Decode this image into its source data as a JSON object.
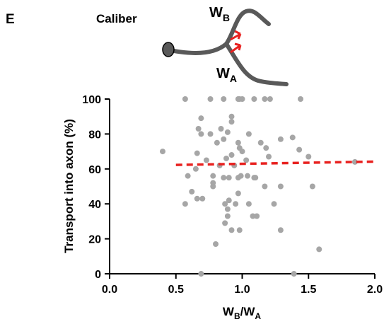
{
  "panel_label": "E",
  "diagram": {
    "title": "Caliber",
    "upper": {
      "main": "W",
      "sub": "B"
    },
    "lower": {
      "main": "W",
      "sub": "A"
    }
  },
  "chart_data": {
    "type": "scatter",
    "y_label": "Transport into axon (%)",
    "x_label_parts": {
      "a_main": "W",
      "a_sub": "B",
      "b_main": "/W",
      "b_sub": "A"
    },
    "color": "#a6a6a6",
    "x": [
      0.57,
      0.76,
      0.86,
      0.97,
      0.98,
      1.0,
      1.09,
      1.17,
      1.21,
      1.44,
      0.92,
      0.92,
      0.69,
      0.67,
      0.69,
      0.76,
      0.89,
      0.84,
      1.05,
      0.86,
      0.81,
      0.97,
      0.98,
      1.14,
      1.29,
      1.38,
      1.5,
      0.4,
      0.66,
      0.73,
      0.92,
      0.88,
      1.0,
      1.18,
      1.2,
      1.43,
      0.94,
      1.03,
      0.65,
      0.83,
      0.78,
      0.59,
      0.78,
      0.78,
      0.86,
      0.9,
      0.97,
      0.99,
      1.04,
      1.1,
      1.17,
      1.29,
      1.53,
      1.85,
      0.62,
      0.66,
      0.7,
      0.57,
      0.87,
      0.89,
      0.9,
      0.95,
      0.97,
      1.05,
      1.08,
      1.11,
      1.09,
      1.24,
      0.89,
      0.87,
      0.92,
      0.98,
      1.29,
      0.8,
      1.58,
      0.69,
      1.39
    ],
    "y": [
      100,
      100,
      100,
      100,
      100,
      100,
      100,
      100,
      100,
      100,
      90,
      87,
      89,
      83,
      80,
      80,
      81,
      83,
      80,
      77,
      75,
      75,
      72,
      75,
      77,
      78,
      67,
      70,
      69,
      65,
      68,
      66,
      70,
      72,
      67,
      71,
      62,
      65,
      60,
      62,
      56,
      56,
      52,
      50,
      55,
      55,
      55,
      56,
      56,
      55,
      50,
      50,
      50,
      64,
      47,
      43,
      43,
      40,
      40,
      37,
      42,
      40,
      46,
      40,
      33,
      33,
      55,
      40,
      33,
      29,
      25,
      25,
      25,
      17,
      14,
      0,
      0
    ],
    "trend": {
      "x": [
        0.5,
        2.0
      ],
      "y": [
        62.3,
        64.2
      ],
      "color": "#e8211f"
    },
    "xlim": [
      0,
      2.0
    ],
    "ylim": [
      0,
      100
    ],
    "xticks": [
      {
        "value": 0,
        "label": "0.0"
      },
      {
        "value": 0.5,
        "label": "0.5"
      },
      {
        "value": 1,
        "label": "1.0"
      },
      {
        "value": 1.5,
        "label": "1.5"
      },
      {
        "value": 2,
        "label": "2.0"
      }
    ],
    "yticks": [
      0,
      20,
      40,
      60,
      80,
      100
    ]
  }
}
